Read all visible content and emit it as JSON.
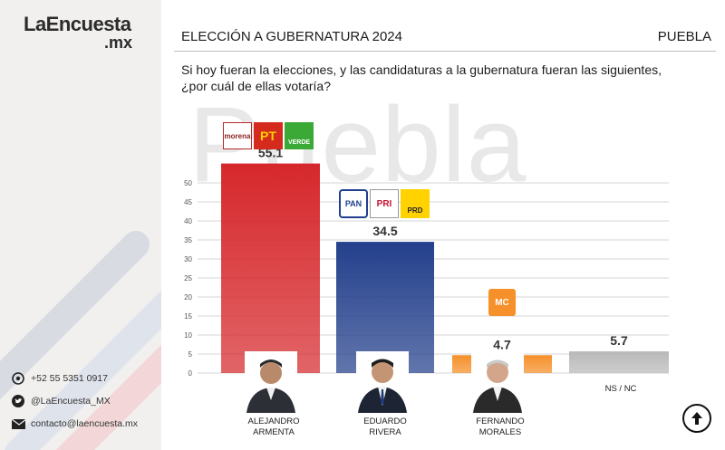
{
  "brand": {
    "name_line1": "LaEncuesta",
    "name_line2": ".mx",
    "accent": "#d4202a"
  },
  "contacts": [
    {
      "icon": "whatsapp-icon",
      "text": "+52 55 5351 0917"
    },
    {
      "icon": "twitter-icon",
      "text": "@LaEncuesta_MX"
    },
    {
      "icon": "mail-icon",
      "text": "contacto@laencuesta.mx"
    }
  ],
  "header": {
    "title": "ELECCIÓN A GUBERNATURA 2024",
    "state": "PUEBLA",
    "question": "Si hoy fueran la elecciones, y las candidaturas a la gubernatura fueran las siguientes, ¿por cuál de ellas votaría?",
    "watermark": "Puebla"
  },
  "party_logos": {
    "morena": "morena",
    "pt": "PT",
    "verde": "VERDE",
    "pan": "PAN",
    "pri": "PRI",
    "prd": "PRD",
    "mc": "MC"
  },
  "chart_data": {
    "type": "bar",
    "categories": [
      "ALEJANDRO\nARMENTA",
      "EDUARDO\nRIVERA",
      "FERNANDO\nMORALES",
      "NS / NC"
    ],
    "values": [
      55.1,
      34.5,
      4.7,
      5.7
    ],
    "value_labels": [
      "55.1",
      "34.5",
      "4.7",
      "5.7"
    ],
    "colors": [
      "#d6282c",
      "#24408c",
      "#f5902a",
      "#b9b9b9"
    ],
    "ylim": [
      0,
      50
    ],
    "yticks": [
      0,
      5,
      10,
      15,
      20,
      25,
      30,
      35,
      40,
      45,
      50
    ],
    "grid": true,
    "title": "",
    "xlabel": "",
    "ylabel": ""
  }
}
